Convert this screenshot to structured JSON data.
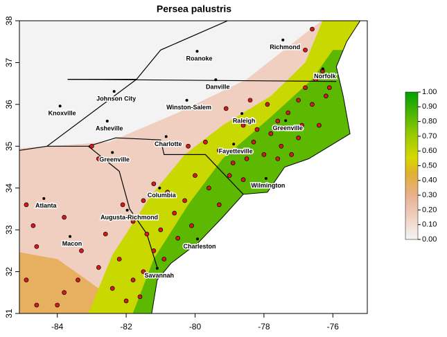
{
  "chart_data": {
    "type": "map",
    "title": "Persea palustris",
    "xlim": [
      -85.1,
      -75.0
    ],
    "ylim": [
      31,
      38
    ],
    "xticks": [
      -84,
      -82,
      -80,
      -78,
      -76
    ],
    "yticks": [
      31,
      32,
      33,
      34,
      35,
      36,
      37,
      38
    ],
    "point_color": "#d7191c",
    "points": {
      "x": [
        -76.3,
        -76.0,
        -76.5,
        -76.8,
        -76.2,
        -76.6,
        -77.0,
        -77.3,
        -77.6,
        -76.9,
        -76.4,
        -77.0,
        -77.5,
        -77.8,
        -78.2,
        -78.6,
        -78.3,
        -78.0,
        -77.6,
        -77.2,
        -78.5,
        -78.9,
        -79.3,
        -78.6,
        -79.0,
        -79.7,
        -80.2,
        -79.1,
        -78.4,
        -77.9,
        -76.8,
        -76.6,
        -76.1,
        -80.0,
        -79.6,
        -79.3,
        -80.3,
        -80.8,
        -81.2,
        -81.5,
        -80.6,
        -80.1,
        -80.5,
        -81.0,
        -81.4,
        -81.2,
        -80.9,
        -81.8,
        -82.1,
        -82.8,
        -83.0,
        -81.5,
        -81.8,
        -81.6,
        -82.0,
        -82.4,
        -82.2,
        -82.8,
        -83.4,
        -83.8,
        -84.0,
        -84.6,
        -84.9,
        -84.6,
        -84.7,
        -83.8,
        -83.3,
        -82.6,
        -84.9
      ],
      "y": [
        36.8,
        36.7,
        36.6,
        36.4,
        36.2,
        36.0,
        36.1,
        35.8,
        35.6,
        35.5,
        35.5,
        35.2,
        35.0,
        35.3,
        35.4,
        35.5,
        35.1,
        34.8,
        34.7,
        34.8,
        34.7,
        34.6,
        34.9,
        34.2,
        34.3,
        35.1,
        35.0,
        35.9,
        36.1,
        36.0,
        37.3,
        37.8,
        36.4,
        34.3,
        34.0,
        33.6,
        33.7,
        33.9,
        34.1,
        33.7,
        33.4,
        33.1,
        32.8,
        33.0,
        32.9,
        32.5,
        32.3,
        33.2,
        33.6,
        34.7,
        35.0,
        32.0,
        31.8,
        31.4,
        31.3,
        31.6,
        32.3,
        32.1,
        31.8,
        31.5,
        31.2,
        31.2,
        31.8,
        32.6,
        33.1,
        33.3,
        32.5,
        32.9,
        33.6
      ]
    },
    "cities": {
      "names": [
        "Richmond",
        "Roanoke",
        "Norfolk",
        "Danville",
        "Johnson City",
        "Winston-Salem",
        "Knoxville",
        "Raleigh",
        "Greenville",
        "Asheville",
        "Charlotte",
        "Fayetteville",
        "Greenville",
        "Wilmington",
        "Columbia",
        "Atlanta",
        "Augusta-Richmond",
        "Macon",
        "Charleston",
        "Savannah"
      ],
      "x": [
        -77.45,
        -79.94,
        -76.29,
        -79.4,
        -82.35,
        -80.24,
        -83.92,
        -78.64,
        -77.37,
        -82.55,
        -80.84,
        -78.88,
        -82.4,
        -77.94,
        -81.03,
        -84.39,
        -81.97,
        -83.63,
        -79.93,
        -81.1
      ],
      "y": [
        37.54,
        37.27,
        36.85,
        36.59,
        36.31,
        36.1,
        35.96,
        35.78,
        35.61,
        35.6,
        35.23,
        35.05,
        34.85,
        34.23,
        34.0,
        33.75,
        33.47,
        32.84,
        32.78,
        32.08
      ]
    },
    "colorbar": {
      "lim": [
        0,
        1
      ],
      "ticks": [
        {
          "value": 0,
          "label": "0.00"
        },
        {
          "value": 0.1,
          "label": "0.10"
        },
        {
          "value": 0.2,
          "label": "0.20"
        },
        {
          "value": 0.3,
          "label": "0.30"
        },
        {
          "value": 0.4,
          "label": "0.40"
        },
        {
          "value": 0.5,
          "label": "0.50"
        },
        {
          "value": 0.6,
          "label": "0.60"
        },
        {
          "value": 0.7,
          "label": "0.70"
        },
        {
          "value": 0.8,
          "label": "0.80"
        },
        {
          "value": 0.9,
          "label": "0.90"
        },
        {
          "value": 1,
          "label": "1.00"
        }
      ]
    }
  }
}
